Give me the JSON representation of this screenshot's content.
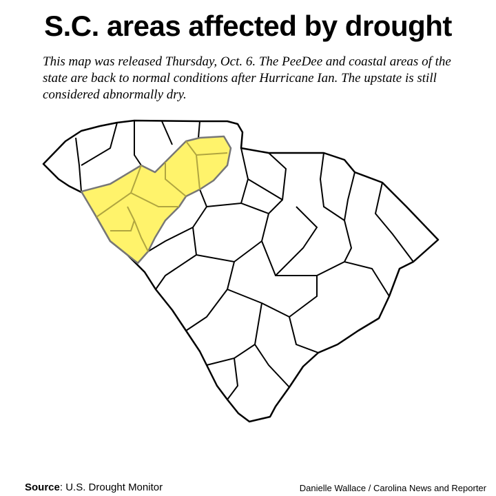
{
  "title": "S.C. areas affected by drought",
  "subtitle": "This map was released Thursday, Oct. 6. The PeeDee and coastal areas of the state are back to normal conditions after Hurricane Ian. The upstate is still considered abnormally dry.",
  "map": {
    "region": "South Carolina counties",
    "highlighted_category": "abnormally dry",
    "colors": {
      "abnormally_dry": "#fff36b",
      "county_fill": "#ffffff",
      "border": "#000000",
      "drought_border": "#777777"
    }
  },
  "footer": {
    "source_label": "Source",
    "source_value": ": U.S. Drought Monitor",
    "credit": "Danielle Wallace / Carolina News and Reporter"
  }
}
